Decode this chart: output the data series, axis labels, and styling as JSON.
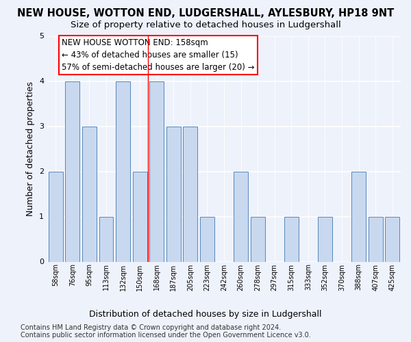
{
  "title": "NEW HOUSE, WOTTON END, LUDGERSHALL, AYLESBURY, HP18 9NT",
  "subtitle": "Size of property relative to detached houses in Ludgershall",
  "xlabel": "Distribution of detached houses by size in Ludgershall",
  "ylabel": "Number of detached properties",
  "categories": [
    "58sqm",
    "76sqm",
    "95sqm",
    "113sqm",
    "132sqm",
    "150sqm",
    "168sqm",
    "187sqm",
    "205sqm",
    "223sqm",
    "242sqm",
    "260sqm",
    "278sqm",
    "297sqm",
    "315sqm",
    "333sqm",
    "352sqm",
    "370sqm",
    "388sqm",
    "407sqm",
    "425sqm"
  ],
  "values": [
    2,
    4,
    3,
    1,
    4,
    2,
    4,
    3,
    3,
    1,
    0,
    2,
    1,
    0,
    1,
    0,
    1,
    0,
    2,
    1,
    1
  ],
  "bar_color": "#c8d8ef",
  "bar_edgecolor": "#5588bb",
  "ylim": [
    0,
    5
  ],
  "yticks": [
    0,
    1,
    2,
    3,
    4,
    5
  ],
  "red_line_index": 5.5,
  "annotation_title": "NEW HOUSE WOTTON END: 158sqm",
  "annotation_line1": "← 43% of detached houses are smaller (15)",
  "annotation_line2": "57% of semi-detached houses are larger (20) →",
  "footer_line1": "Contains HM Land Registry data © Crown copyright and database right 2024.",
  "footer_line2": "Contains public sector information licensed under the Open Government Licence v3.0.",
  "background_color": "#eef2fb",
  "plot_bg_color": "#eef2fb",
  "grid_color": "#ffffff",
  "title_fontsize": 10.5,
  "subtitle_fontsize": 9.5,
  "axis_label_fontsize": 9,
  "tick_fontsize": 7,
  "annotation_fontsize": 8.5,
  "footer_fontsize": 7
}
